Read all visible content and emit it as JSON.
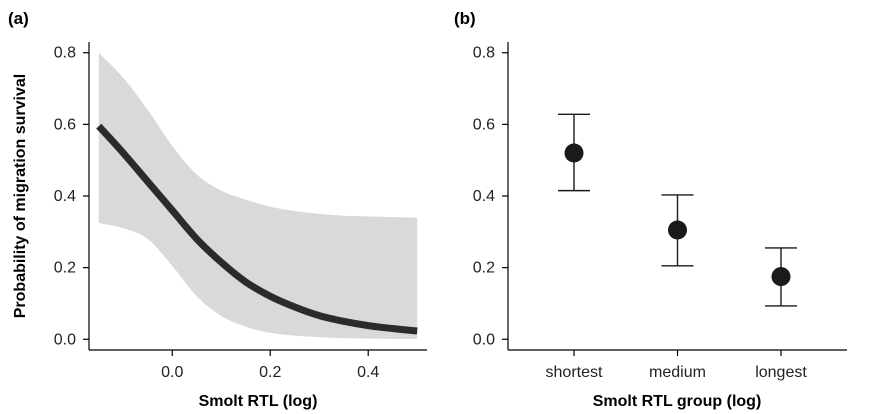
{
  "chart_data": [
    {
      "panel": "(a)",
      "type": "line",
      "xlabel": "Smolt RTL (log)",
      "ylabel": "Probability of migration survival",
      "xlim": [
        -0.17,
        0.52
      ],
      "ylim": [
        -0.03,
        0.83
      ],
      "xticks": [
        0.0,
        0.2,
        0.4
      ],
      "yticks": [
        0.0,
        0.2,
        0.4,
        0.6,
        0.8
      ],
      "tick_decimals": 1,
      "grid": false,
      "line_color": "#2b2b2b",
      "band_color": "#d9d9d9",
      "series": [
        {
          "x": [
            -0.15,
            -0.1,
            -0.05,
            0.0,
            0.05,
            0.1,
            0.15,
            0.2,
            0.25,
            0.3,
            0.35,
            0.4,
            0.45,
            0.5
          ],
          "y": [
            0.595,
            0.52,
            0.44,
            0.36,
            0.28,
            0.215,
            0.16,
            0.12,
            0.09,
            0.066,
            0.05,
            0.038,
            0.03,
            0.023
          ],
          "lower": [
            0.325,
            0.31,
            0.28,
            0.205,
            0.12,
            0.065,
            0.035,
            0.018,
            0.01,
            0.006,
            0.003,
            0.002,
            0.001,
            0.001
          ],
          "upper": [
            0.8,
            0.73,
            0.64,
            0.54,
            0.46,
            0.415,
            0.39,
            0.37,
            0.358,
            0.35,
            0.345,
            0.343,
            0.341,
            0.34
          ]
        }
      ]
    },
    {
      "panel": "(b)",
      "type": "scatter",
      "xlabel": "Smolt RTL group (log)",
      "ylabel": "",
      "categories": [
        "shortest",
        "medium",
        "longest"
      ],
      "ylim": [
        -0.03,
        0.83
      ],
      "yticks": [
        0.0,
        0.2,
        0.4,
        0.6,
        0.8
      ],
      "tick_decimals": 1,
      "grid": false,
      "point_color": "#1a1a1a",
      "series": [
        {
          "values": [
            0.52,
            0.305,
            0.175
          ],
          "lower": [
            0.415,
            0.205,
            0.093
          ],
          "upper": [
            0.628,
            0.403,
            0.255
          ]
        }
      ]
    }
  ]
}
